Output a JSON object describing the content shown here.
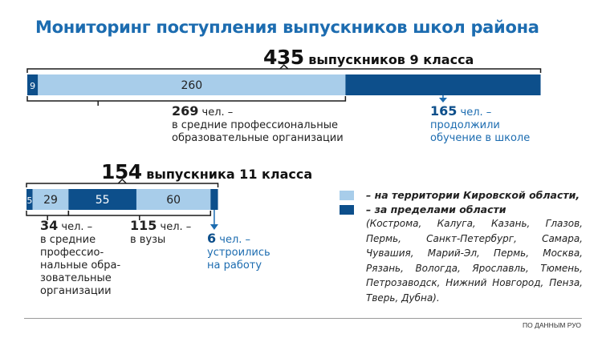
{
  "title": "Мониторинг поступления выпускников школ района",
  "colors": {
    "title": "#1c6cb0",
    "in_region": "#a8cdea",
    "outside_region": "#0d4f8b",
    "accent_blue": "#1c6cb0",
    "bracket": "#1a1a1a"
  },
  "chart_data": [
    {
      "type": "bar",
      "orientation": "horizontal-stacked",
      "headline_number": "435",
      "headline_text": "выпускников 9 класса",
      "total": 435,
      "segments": [
        {
          "value": 9,
          "label": "9",
          "group": "outside_region"
        },
        {
          "value": 260,
          "label": "260",
          "group": "in_region"
        },
        {
          "value": 165,
          "label": "",
          "group": "outside_region"
        }
      ],
      "annotations": [
        {
          "number": "269",
          "lines": [
            "чел. –",
            "в средние профессиональные",
            "образовательные организации"
          ]
        },
        {
          "number": "165",
          "lines": [
            "чел. –",
            "продолжили",
            "обучение в школе"
          ]
        }
      ]
    },
    {
      "type": "bar",
      "orientation": "horizontal-stacked",
      "headline_number": "154",
      "headline_text": "выпускника 11 класса",
      "total": 154,
      "segments": [
        {
          "value": 5,
          "label": "5",
          "group": "outside_region"
        },
        {
          "value": 29,
          "label": "29",
          "group": "in_region"
        },
        {
          "value": 55,
          "label": "55",
          "group": "outside_region"
        },
        {
          "value": 60,
          "label": "60",
          "group": "in_region"
        },
        {
          "value": 6,
          "label": "",
          "group": "outside_region"
        }
      ],
      "annotations": [
        {
          "number": "34",
          "lines": [
            "чел. –",
            "в средние",
            "профессио-",
            "нальные обра-",
            "зовательные",
            "организации"
          ]
        },
        {
          "number": "115",
          "lines": [
            "чел. –",
            "в вузы"
          ]
        },
        {
          "number": "6",
          "lines": [
            "чел. –",
            "устроились",
            "на работу"
          ]
        }
      ]
    }
  ],
  "legend": {
    "in_region_label": "– на территории Кировской области,",
    "outside_region_label": "– за пределами области",
    "places": "(Кострома, Калуга, Казань, Глазов, Пермь, Санкт-Петербург, Самара, Чувашия, Марий-Эл, Пермь, Москва, Рязань, Вологда, Ярославль, Тюмень, Петрозаводск, Нижний Новгород, Пенза, Тверь, Дубна)."
  },
  "source": "ПО ДАННЫМ РУО"
}
